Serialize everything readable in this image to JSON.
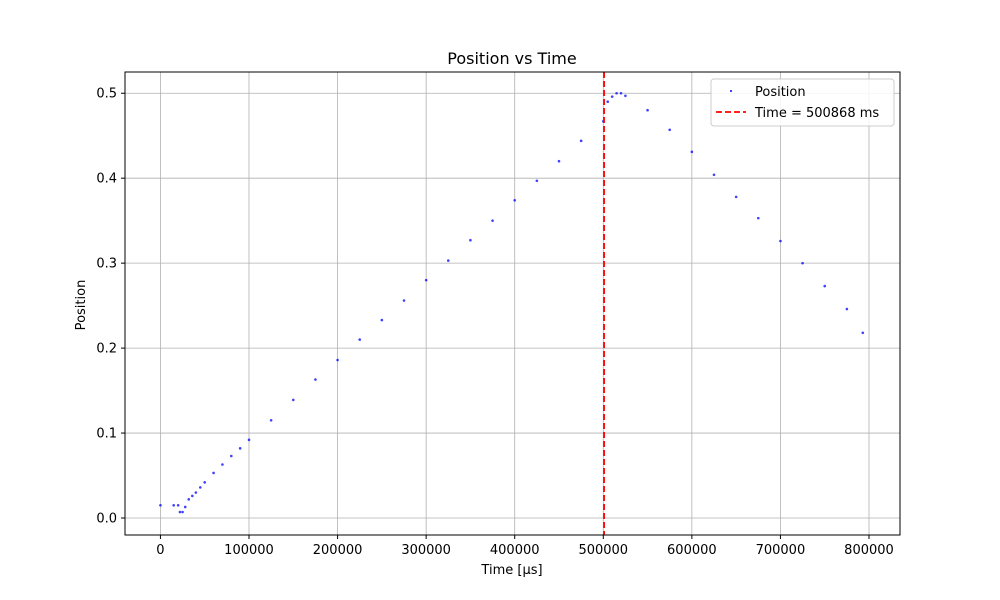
{
  "chart_data": {
    "type": "scatter",
    "title": "Position vs Time",
    "xlabel": "Time [µs]",
    "ylabel": "Position",
    "xlim": [
      -40000,
      835000
    ],
    "ylim": [
      -0.02,
      0.525
    ],
    "x_ticks": [
      0,
      100000,
      200000,
      300000,
      400000,
      500000,
      600000,
      700000,
      800000
    ],
    "x_tick_labels": [
      "0",
      "100000",
      "200000",
      "300000",
      "400000",
      "500000",
      "600000",
      "700000",
      "800000"
    ],
    "y_ticks": [
      0.0,
      0.1,
      0.2,
      0.3,
      0.4,
      0.5
    ],
    "y_tick_labels": [
      "0.0",
      "0.1",
      "0.2",
      "0.3",
      "0.4",
      "0.5"
    ],
    "grid": true,
    "legend_position": "top-right",
    "series": [
      {
        "name": "Position",
        "color": "#0000ff",
        "marker": "dot",
        "x": [
          0,
          15000,
          20000,
          22000,
          25000,
          28000,
          32000,
          36000,
          40000,
          45000,
          50000,
          60000,
          70000,
          80000,
          90000,
          100000,
          125000,
          150000,
          175000,
          200000,
          225000,
          250000,
          275000,
          300000,
          325000,
          350000,
          375000,
          400000,
          425000,
          450000,
          475000,
          500000,
          505000,
          510000,
          515000,
          520000,
          525000,
          550000,
          575000,
          600000,
          625000,
          650000,
          675000,
          700000,
          725000,
          750000,
          775000,
          793000
        ],
        "y": [
          0.015,
          0.015,
          0.015,
          0.007,
          0.007,
          0.013,
          0.022,
          0.026,
          0.03,
          0.036,
          0.042,
          0.053,
          0.063,
          0.073,
          0.082,
          0.092,
          0.115,
          0.139,
          0.163,
          0.186,
          0.21,
          0.233,
          0.256,
          0.28,
          0.303,
          0.327,
          0.35,
          0.374,
          0.397,
          0.42,
          0.444,
          0.467,
          0.49,
          0.496,
          0.5,
          0.5,
          0.497,
          0.48,
          0.457,
          0.431,
          0.404,
          0.378,
          0.353,
          0.326,
          0.3,
          0.273,
          0.246,
          0.218
        ]
      }
    ],
    "reference_line": {
      "name": "Time = 500868 ms",
      "x": 500868,
      "color": "#ff0000",
      "style": "dashed"
    }
  }
}
